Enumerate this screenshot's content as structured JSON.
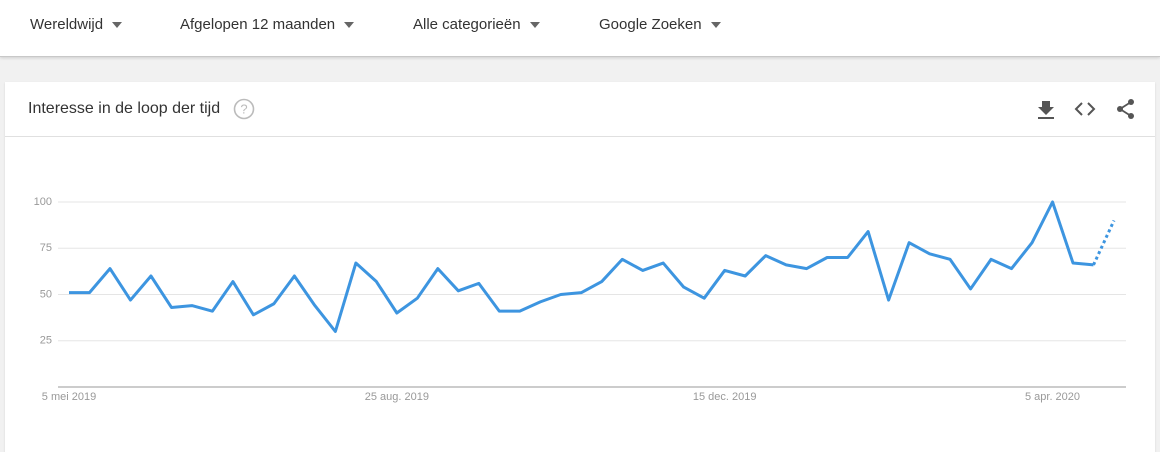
{
  "filters": [
    "Wereldwijd",
    "Afgelopen 12 maanden",
    "Alle categorieën",
    "Google Zoeken"
  ],
  "card": {
    "title": "Interesse in de loop der tijd"
  },
  "chart_data": {
    "type": "line",
    "categories": [
      "5 mei 2019",
      null,
      null,
      null,
      null,
      null,
      null,
      null,
      null,
      null,
      null,
      null,
      null,
      null,
      null,
      null,
      "25 aug. 2019",
      null,
      null,
      null,
      null,
      null,
      null,
      null,
      null,
      null,
      null,
      null,
      null,
      null,
      null,
      null,
      "15 dec. 2019",
      null,
      null,
      null,
      null,
      null,
      null,
      null,
      null,
      null,
      null,
      null,
      null,
      null,
      null,
      null,
      "5 apr. 2020",
      null,
      null,
      null
    ],
    "values": [
      51,
      51,
      64,
      47,
      60,
      43,
      44,
      41,
      57,
      39,
      45,
      60,
      44,
      30,
      67,
      57,
      40,
      48,
      64,
      52,
      56,
      41,
      41,
      46,
      50,
      51,
      57,
      69,
      63,
      67,
      54,
      48,
      63,
      60,
      71,
      66,
      64,
      70,
      70,
      84,
      47,
      78,
      72,
      69,
      53,
      69,
      64,
      78,
      100,
      67,
      66,
      90
    ],
    "color": "#3d95e0",
    "dotted_last_segment": true,
    "ylim": [
      0,
      100
    ],
    "yticks": [
      25,
      50,
      75,
      100
    ],
    "grid": true
  }
}
